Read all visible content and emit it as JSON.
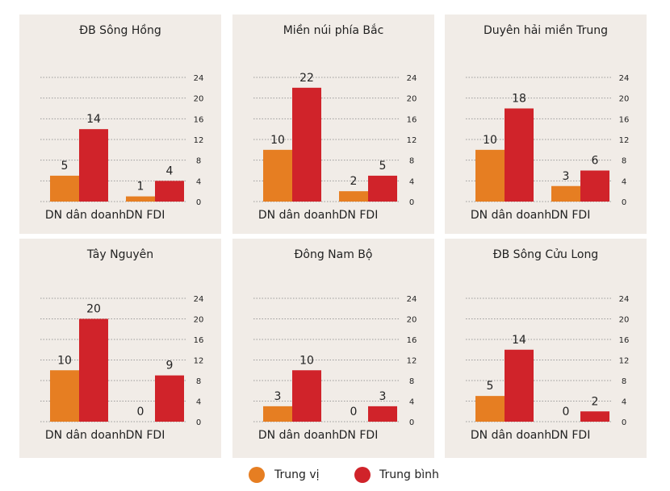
{
  "chart_data": [
    {
      "type": "bar",
      "title": "ĐB Sông Hồng",
      "categories": [
        "DN dân doanh",
        "DN FDI"
      ],
      "series": [
        {
          "name": "Trung vị",
          "values": [
            5,
            1
          ]
        },
        {
          "name": "Trung bình",
          "values": [
            14,
            4
          ]
        }
      ],
      "ylim": [
        0,
        24
      ],
      "yticks": [
        0,
        4,
        8,
        12,
        16,
        20,
        24
      ]
    },
    {
      "type": "bar",
      "title": "Miền núi phía Bắc",
      "categories": [
        "DN dân doanh",
        "DN FDI"
      ],
      "series": [
        {
          "name": "Trung vị",
          "values": [
            10,
            2
          ]
        },
        {
          "name": "Trung bình",
          "values": [
            22,
            5
          ]
        }
      ],
      "ylim": [
        0,
        24
      ],
      "yticks": [
        0,
        4,
        8,
        12,
        16,
        20,
        24
      ]
    },
    {
      "type": "bar",
      "title": "Duyên hải miền Trung",
      "categories": [
        "DN dân doanh",
        "DN FDI"
      ],
      "series": [
        {
          "name": "Trung vị",
          "values": [
            10,
            3
          ]
        },
        {
          "name": "Trung bình",
          "values": [
            18,
            6
          ]
        }
      ],
      "ylim": [
        0,
        24
      ],
      "yticks": [
        0,
        4,
        8,
        12,
        16,
        20,
        24
      ]
    },
    {
      "type": "bar",
      "title": "Tây Nguyên",
      "categories": [
        "DN dân doanh",
        "DN FDI"
      ],
      "series": [
        {
          "name": "Trung vị",
          "values": [
            10,
            0
          ]
        },
        {
          "name": "Trung bình",
          "values": [
            20,
            9
          ]
        }
      ],
      "ylim": [
        0,
        24
      ],
      "yticks": [
        0,
        4,
        8,
        12,
        16,
        20,
        24
      ]
    },
    {
      "type": "bar",
      "title": "Đông Nam Bộ",
      "categories": [
        "DN dân doanh",
        "DN FDI"
      ],
      "series": [
        {
          "name": "Trung vị",
          "values": [
            3,
            0
          ]
        },
        {
          "name": "Trung bình",
          "values": [
            10,
            3
          ]
        }
      ],
      "ylim": [
        0,
        24
      ],
      "yticks": [
        0,
        4,
        8,
        12,
        16,
        20,
        24
      ]
    },
    {
      "type": "bar",
      "title": "ĐB Sông Cửu Long",
      "categories": [
        "DN dân doanh",
        "DN FDI"
      ],
      "series": [
        {
          "name": "Trung vị",
          "values": [
            5,
            0
          ]
        },
        {
          "name": "Trung bình",
          "values": [
            14,
            2
          ]
        }
      ],
      "ylim": [
        0,
        24
      ],
      "yticks": [
        0,
        4,
        8,
        12,
        16,
        20,
        24
      ]
    }
  ],
  "legend": [
    {
      "label": "Trung vị",
      "color": "#e67e22"
    },
    {
      "label": "Trung bình",
      "color": "#d0232a"
    }
  ],
  "colors": {
    "median": "#e67e22",
    "mean": "#d0232a",
    "panel_bg": "#f1ece7",
    "grid": "#9a9a9a",
    "text": "#222222"
  }
}
